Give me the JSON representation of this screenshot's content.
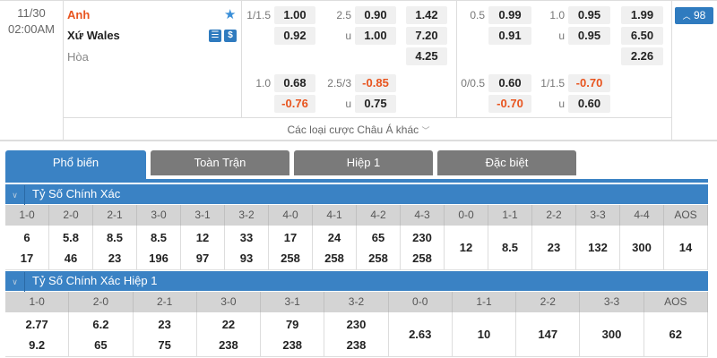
{
  "match": {
    "date": "11/30",
    "time": "02:00AM",
    "home": "Anh",
    "away": "Xứ Wales",
    "draw": "Hòa",
    "more_count": "98",
    "favorite_icon": "star-icon"
  },
  "odds": {
    "b1": {
      "hdp1": "1/1.5",
      "h1a": "1.00",
      "h1b": "0.92",
      "ou1": "2.5",
      "o1a": "0.90",
      "u1": "u",
      "o1b": "1.00",
      "x1": "1.42",
      "x2": "7.20",
      "x3": "4.25",
      "hdp2": "1.0",
      "h2a": "0.68",
      "h2b": "-0.76",
      "ou2": "2.5/3",
      "o2a": "-0.85",
      "u2": "u",
      "o2b": "0.75"
    },
    "b2": {
      "hdp1": "0.5",
      "h1a": "0.99",
      "h1b": "0.91",
      "ou1": "1.0",
      "o1a": "0.95",
      "u1": "u",
      "o1b": "0.95",
      "x1": "1.99",
      "x2": "6.50",
      "x3": "2.26",
      "hdp2": "0/0.5",
      "h2a": "0.60",
      "h2b": "-0.70",
      "ou2": "1/1.5",
      "o2a": "-0.70",
      "u2": "u",
      "o2b": "0.60"
    }
  },
  "more_label": "Các loại cược Châu Á khác",
  "tabs": [
    "Phổ biến",
    "Toàn Trận",
    "Hiệp 1",
    "Đặc biệt"
  ],
  "sections": [
    {
      "title": "Tỷ Số Chính Xác",
      "headers": [
        "1-0",
        "2-0",
        "2-1",
        "3-0",
        "3-1",
        "3-2",
        "4-0",
        "4-1",
        "4-2",
        "4-3",
        "0-0",
        "1-1",
        "2-2",
        "3-3",
        "4-4",
        "AOS"
      ],
      "home": [
        "6",
        "5.8",
        "8.5",
        "8.5",
        "12",
        "33",
        "17",
        "24",
        "65",
        "230",
        "12",
        "8.5",
        "23",
        "132",
        "300",
        "14"
      ],
      "away": [
        "17",
        "46",
        "23",
        "196",
        "97",
        "93",
        "258",
        "258",
        "258",
        "258",
        null,
        null,
        null,
        null,
        null,
        null
      ]
    },
    {
      "title": "Tỷ Số Chính Xác Hiệp 1",
      "headers": [
        "1-0",
        "2-0",
        "2-1",
        "3-0",
        "3-1",
        "3-2",
        "0-0",
        "1-1",
        "2-2",
        "3-3",
        "AOS"
      ],
      "home": [
        "2.77",
        "6.2",
        "23",
        "22",
        "79",
        "230",
        "2.63",
        "10",
        "147",
        "300",
        "62"
      ],
      "away": [
        "9.2",
        "65",
        "75",
        "238",
        "238",
        "238",
        null,
        null,
        null,
        null,
        null
      ]
    }
  ],
  "colors": {
    "accent": "#3a82c4",
    "negative": "#e8541e",
    "home_team": "#e8541e"
  }
}
